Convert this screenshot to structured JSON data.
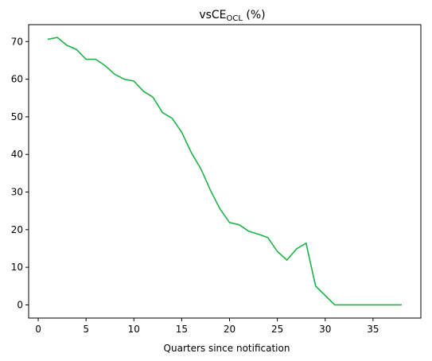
{
  "chart_data": {
    "type": "line",
    "title": "vsCE",
    "title_subscript": "OCL",
    "title_suffix": " (%)",
    "xlabel": "Quarters since notification",
    "ylabel": "",
    "xlim": [
      -1,
      40
    ],
    "ylim": [
      -3.5,
      74.5
    ],
    "xticks": [
      0,
      5,
      10,
      15,
      20,
      25,
      30,
      35
    ],
    "yticks": [
      0,
      10,
      20,
      30,
      40,
      50,
      60,
      70
    ],
    "grid": false,
    "series": [
      {
        "color": "#1db347",
        "x": [
          1,
          2,
          3,
          4,
          5,
          6,
          7,
          8,
          9,
          10,
          11,
          12,
          13,
          14,
          15,
          16,
          17,
          18,
          19,
          20,
          21,
          22,
          23,
          24,
          25,
          26,
          27,
          28,
          29,
          30,
          31,
          32,
          33,
          34,
          35,
          36,
          37,
          38
        ],
        "y": [
          70.6,
          71.1,
          69.0,
          67.9,
          65.3,
          65.3,
          63.6,
          61.3,
          60.0,
          59.5,
          56.8,
          55.2,
          51.1,
          49.6,
          45.9,
          40.5,
          36.2,
          30.5,
          25.5,
          21.9,
          21.3,
          19.6,
          18.8,
          17.9,
          14.2,
          11.9,
          14.9,
          16.4,
          5.0,
          2.5,
          0.0,
          0.0,
          0.0,
          0.0,
          0.0,
          0.0,
          0.0,
          0.0
        ]
      }
    ]
  }
}
